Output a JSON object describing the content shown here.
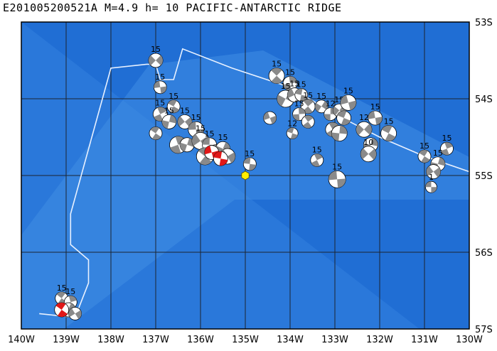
{
  "title": "E201005200521A  M=4.9  h= 10  PACIFIC-ANTARCTIC  RIDGE",
  "map": {
    "lon_range": [
      -140,
      -130
    ],
    "lat_range": [
      -57,
      -53
    ],
    "lon_labels": [
      "140W",
      "139W",
      "138W",
      "137W",
      "136W",
      "135W",
      "134W",
      "133W",
      "132W",
      "131W",
      "130W"
    ],
    "lat_labels": [
      "53S",
      "54S",
      "55S",
      "56S",
      "57S"
    ],
    "colors": {
      "ocean_deep": "#1f6cd2",
      "ocean_mid": "#2a78da",
      "ridge_light": "#3f8ee4",
      "plate_boundary": "#e8f1ff",
      "grid": "#1c2430",
      "mechanism_fill": "#8a8a8a",
      "mechanism_event": "#e11818",
      "epicenter": "#ffee00"
    },
    "epicenter": {
      "lon": -135.0,
      "lat": -55.0
    },
    "plate_boundary": [
      [
        -139.6,
        -56.8
      ],
      [
        -138.8,
        -56.85
      ],
      [
        -138.5,
        -56.4
      ],
      [
        -138.5,
        -56.1
      ],
      [
        -138.9,
        -55.9
      ],
      [
        -138.9,
        -55.5
      ],
      [
        -138.0,
        -53.6
      ],
      [
        -137.2,
        -53.55
      ],
      [
        -137.0,
        -53.55
      ],
      [
        -136.9,
        -53.75
      ],
      [
        -136.6,
        -53.75
      ],
      [
        -136.4,
        -53.35
      ],
      [
        -135.3,
        -53.6
      ],
      [
        -134.0,
        -53.85
      ],
      [
        -133.0,
        -54.2
      ],
      [
        -132.0,
        -54.5
      ],
      [
        -131.0,
        -54.75
      ],
      [
        -130.0,
        -54.95
      ]
    ],
    "mechanisms": [
      {
        "lon": -137.0,
        "lat": -53.5,
        "label": "15",
        "size": 10
      },
      {
        "lon": -136.9,
        "lat": -53.85,
        "label": "15",
        "size": 9
      },
      {
        "lon": -136.6,
        "lat": -54.1,
        "label": "15",
        "size": 9
      },
      {
        "lon": -136.9,
        "lat": -54.2,
        "label": "15",
        "size": 10
      },
      {
        "lon": -136.7,
        "lat": -54.3,
        "label": "15",
        "size": 10
      },
      {
        "lon": -136.35,
        "lat": -54.3,
        "label": "15",
        "size": 10
      },
      {
        "lon": -136.1,
        "lat": -54.4,
        "label": "15",
        "size": 11
      },
      {
        "lon": -137.0,
        "lat": -54.45,
        "label": "",
        "size": 9
      },
      {
        "lon": -136.5,
        "lat": -54.6,
        "label": "",
        "size": 12
      },
      {
        "lon": -136.3,
        "lat": -54.6,
        "label": "",
        "size": 10
      },
      {
        "lon": -136.0,
        "lat": -54.55,
        "label": "15",
        "size": 12
      },
      {
        "lon": -135.8,
        "lat": -54.6,
        "label": "15",
        "size": 10
      },
      {
        "lon": -135.9,
        "lat": -54.75,
        "label": "",
        "size": 12
      },
      {
        "lon": -135.65,
        "lat": -54.7,
        "label": "",
        "size": 11
      },
      {
        "lon": -135.5,
        "lat": -54.65,
        "label": "15",
        "size": 10
      },
      {
        "lon": -135.4,
        "lat": -54.75,
        "label": "",
        "size": 11
      },
      {
        "lon": -134.9,
        "lat": -54.85,
        "label": "15",
        "size": 9
      },
      {
        "lon": -134.3,
        "lat": -53.7,
        "label": "15",
        "size": 11
      },
      {
        "lon": -134.0,
        "lat": -53.8,
        "label": "15",
        "size": 10
      },
      {
        "lon": -134.1,
        "lat": -54.0,
        "label": "15",
        "size": 12
      },
      {
        "lon": -133.9,
        "lat": -53.95,
        "label": "15",
        "size": 10
      },
      {
        "lon": -133.75,
        "lat": -53.95,
        "label": "15",
        "size": 9
      },
      {
        "lon": -133.6,
        "lat": -54.1,
        "label": "15",
        "size": 10
      },
      {
        "lon": -133.8,
        "lat": -54.2,
        "label": "15",
        "size": 9
      },
      {
        "lon": -133.3,
        "lat": -54.1,
        "label": "15",
        "size": 9
      },
      {
        "lon": -134.45,
        "lat": -54.25,
        "label": "",
        "size": 9
      },
      {
        "lon": -133.95,
        "lat": -54.45,
        "label": "12",
        "size": 8
      },
      {
        "lon": -133.6,
        "lat": -54.3,
        "label": "",
        "size": 9
      },
      {
        "lon": -133.1,
        "lat": -54.2,
        "label": "12",
        "size": 9
      },
      {
        "lon": -132.9,
        "lat": -54.15,
        "label": "15",
        "size": 9
      },
      {
        "lon": -132.7,
        "lat": -54.05,
        "label": "15",
        "size": 11
      },
      {
        "lon": -132.8,
        "lat": -54.25,
        "label": "",
        "size": 10
      },
      {
        "lon": -133.05,
        "lat": -54.4,
        "label": "",
        "size": 10
      },
      {
        "lon": -132.9,
        "lat": -54.45,
        "label": "",
        "size": 11
      },
      {
        "lon": -132.35,
        "lat": -54.4,
        "label": "12",
        "size": 11
      },
      {
        "lon": -132.1,
        "lat": -54.25,
        "label": "15",
        "size": 10
      },
      {
        "lon": -131.8,
        "lat": -54.45,
        "label": "15",
        "size": 11
      },
      {
        "lon": -133.4,
        "lat": -54.8,
        "label": "15",
        "size": 9
      },
      {
        "lon": -132.2,
        "lat": -54.6,
        "label": "",
        "size": 10
      },
      {
        "lon": -132.25,
        "lat": -54.72,
        "label": "10",
        "size": 11
      },
      {
        "lon": -132.95,
        "lat": -55.05,
        "label": "15",
        "size": 12
      },
      {
        "lon": -131.0,
        "lat": -54.75,
        "label": "15",
        "size": 9
      },
      {
        "lon": -130.5,
        "lat": -54.65,
        "label": "15",
        "size": 9
      },
      {
        "lon": -130.7,
        "lat": -54.85,
        "label": "15",
        "size": 10
      },
      {
        "lon": -130.8,
        "lat": -54.95,
        "label": "",
        "size": 10
      },
      {
        "lon": -130.85,
        "lat": -55.15,
        "label": "1",
        "size": 8
      },
      {
        "lon": -139.1,
        "lat": -56.6,
        "label": "15",
        "size": 9
      },
      {
        "lon": -138.9,
        "lat": -56.65,
        "label": "15",
        "size": 9
      },
      {
        "lon": -138.95,
        "lat": -56.75,
        "label": "",
        "size": 10
      },
      {
        "lon": -138.8,
        "lat": -56.8,
        "label": "",
        "size": 9
      }
    ],
    "event_mechanisms": [
      {
        "lon": -135.75,
        "lat": -54.7
      },
      {
        "lon": -135.55,
        "lat": -54.78
      },
      {
        "lon": -139.1,
        "lat": -56.75
      }
    ]
  }
}
